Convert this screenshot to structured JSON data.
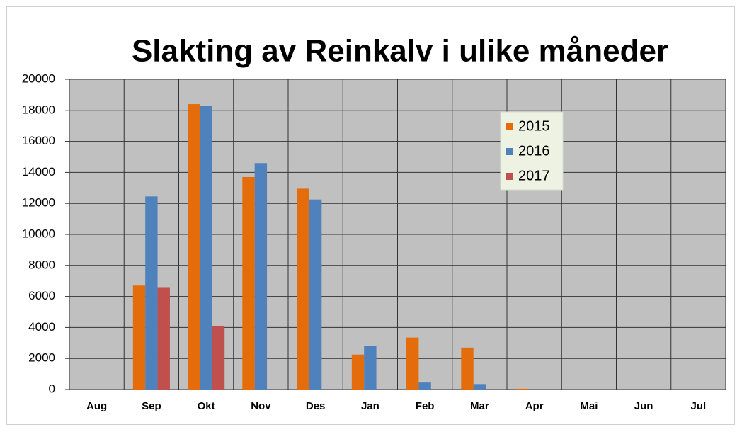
{
  "chart_data": {
    "type": "bar",
    "title": "Slakting av Reinkalv i ulike måneder",
    "categories": [
      "Aug",
      "Sep",
      "Okt",
      "Nov",
      "Des",
      "Jan",
      "Feb",
      "Mar",
      "Apr",
      "Mai",
      "Jun",
      "Jul"
    ],
    "series": [
      {
        "name": "2015",
        "color": "#e46c0a",
        "values": [
          0,
          6700,
          18400,
          13700,
          12950,
          2250,
          3350,
          2700,
          50,
          0,
          0,
          0
        ]
      },
      {
        "name": "2016",
        "color": "#4f81bd",
        "values": [
          0,
          12450,
          18300,
          14600,
          12250,
          2800,
          450,
          350,
          0,
          0,
          0,
          0
        ]
      },
      {
        "name": "2017",
        "color": "#c0504d",
        "values": [
          0,
          6600,
          4100,
          0,
          0,
          0,
          0,
          0,
          0,
          0,
          0,
          0
        ]
      }
    ],
    "ylim": [
      0,
      20000
    ],
    "yticks": [
      0,
      2000,
      4000,
      6000,
      8000,
      10000,
      12000,
      14000,
      16000,
      18000,
      20000
    ],
    "grid": true,
    "legend": "upper-right"
  }
}
